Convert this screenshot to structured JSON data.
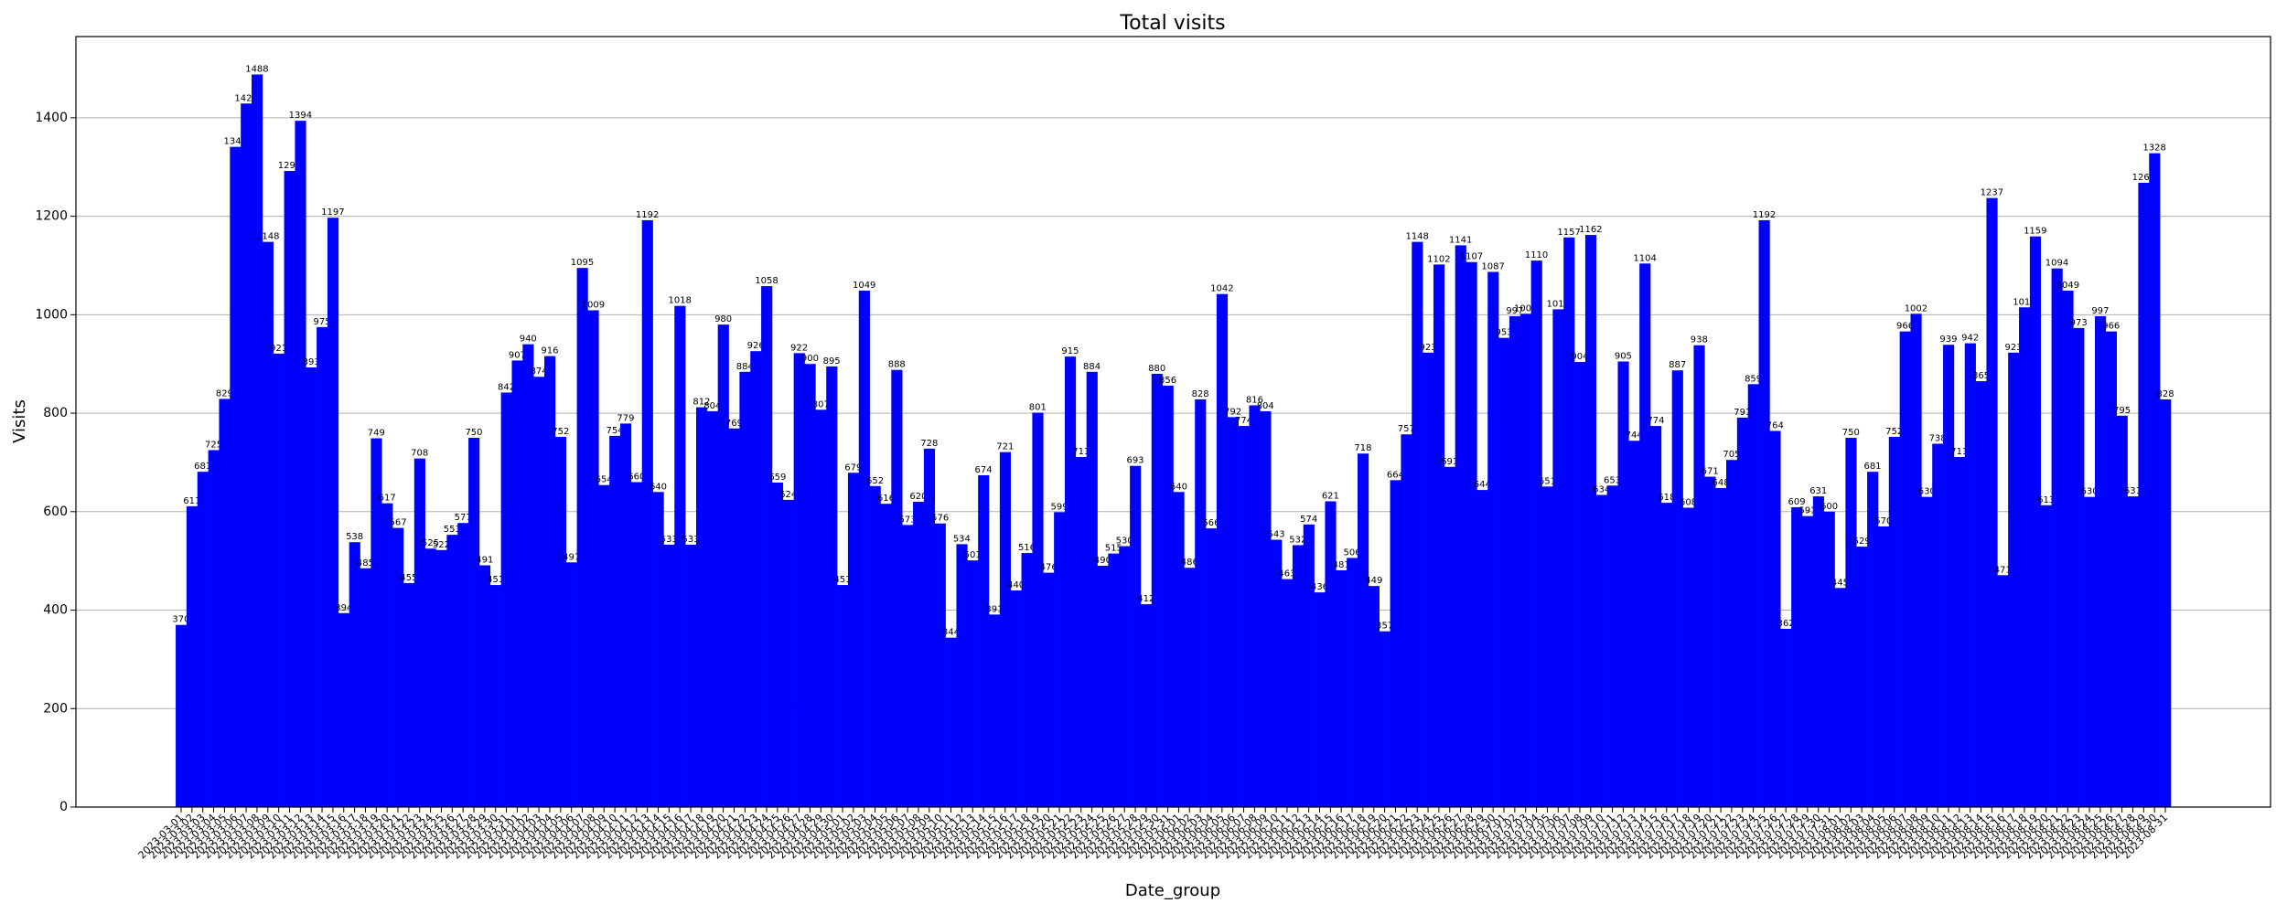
{
  "chart_data": {
    "type": "bar",
    "title": "Total visits",
    "x_label": "Date_group",
    "y_label": "Visits",
    "color": "#0000ff",
    "grid": true,
    "ylim": [
      0,
      1565
    ],
    "yticks": [
      0,
      200,
      400,
      600,
      800,
      1000,
      1200,
      1400
    ],
    "categories": [
      "2023-03-01",
      "2023-03-02",
      "2023-03-03",
      "2023-03-04",
      "2023-03-05",
      "2023-03-06",
      "2023-03-07",
      "2023-03-08",
      "2023-03-09",
      "2023-03-10",
      "2023-03-11",
      "2023-03-12",
      "2023-03-13",
      "2023-03-14",
      "2023-03-15",
      "2023-03-16",
      "2023-03-17",
      "2023-03-18",
      "2023-03-19",
      "2023-03-20",
      "2023-03-21",
      "2023-03-22",
      "2023-03-23",
      "2023-03-24",
      "2023-03-25",
      "2023-03-26",
      "2023-03-27",
      "2023-03-28",
      "2023-03-29",
      "2023-03-30",
      "2023-03-31",
      "2023-04-01",
      "2023-04-02",
      "2023-04-03",
      "2023-04-04",
      "2023-04-05",
      "2023-04-06",
      "2023-04-07",
      "2023-04-08",
      "2023-04-09",
      "2023-04-10",
      "2023-04-11",
      "2023-04-12",
      "2023-04-13",
      "2023-04-14",
      "2023-04-15",
      "2023-04-16",
      "2023-04-17",
      "2023-04-18",
      "2023-04-19",
      "2023-04-20",
      "2023-04-21",
      "2023-04-22",
      "2023-04-23",
      "2023-04-24",
      "2023-04-25",
      "2023-04-26",
      "2023-04-27",
      "2023-04-28",
      "2023-04-29",
      "2023-04-30",
      "2023-05-01",
      "2023-05-02",
      "2023-05-03",
      "2023-05-04",
      "2023-05-05",
      "2023-05-06",
      "2023-05-07",
      "2023-05-08",
      "2023-05-09",
      "2023-05-10",
      "2023-05-11",
      "2023-05-12",
      "2023-05-13",
      "2023-05-14",
      "2023-05-15",
      "2023-05-16",
      "2023-05-17",
      "2023-05-18",
      "2023-05-19",
      "2023-05-20",
      "2023-05-21",
      "2023-05-22",
      "2023-05-23",
      "2023-05-24",
      "2023-05-25",
      "2023-05-26",
      "2023-05-27",
      "2023-05-28",
      "2023-05-29",
      "2023-05-30",
      "2023-05-31",
      "2023-06-01",
      "2023-06-02",
      "2023-06-03",
      "2023-06-04",
      "2023-06-05",
      "2023-06-06",
      "2023-06-07",
      "2023-06-08",
      "2023-06-09",
      "2023-06-10",
      "2023-06-11",
      "2023-06-12",
      "2023-06-13",
      "2023-06-14",
      "2023-06-15",
      "2023-06-16",
      "2023-06-17",
      "2023-06-18",
      "2023-06-19",
      "2023-06-20",
      "2023-06-21",
      "2023-06-22",
      "2023-06-23",
      "2023-06-24",
      "2023-06-25",
      "2023-06-26",
      "2023-06-27",
      "2023-06-28",
      "2023-06-29",
      "2023-06-30",
      "2023-07-01",
      "2023-07-02",
      "2023-07-03",
      "2023-07-04",
      "2023-07-05",
      "2023-07-06",
      "2023-07-07",
      "2023-07-08",
      "2023-07-09",
      "2023-07-10",
      "2023-07-11",
      "2023-07-12",
      "2023-07-13",
      "2023-07-14",
      "2023-07-15",
      "2023-07-16",
      "2023-07-17",
      "2023-07-18",
      "2023-07-19",
      "2023-07-20",
      "2023-07-21",
      "2023-07-22",
      "2023-07-23",
      "2023-07-24",
      "2023-07-25",
      "2023-07-26",
      "2023-07-27",
      "2023-07-28",
      "2023-07-29",
      "2023-07-30",
      "2023-07-31",
      "2023-08-01",
      "2023-08-02",
      "2023-08-03",
      "2023-08-04",
      "2023-08-05",
      "2023-08-06",
      "2023-08-07",
      "2023-08-08",
      "2023-08-09",
      "2023-08-10",
      "2023-08-11",
      "2023-08-12",
      "2023-08-13",
      "2023-08-14",
      "2023-08-15",
      "2023-08-16",
      "2023-08-17",
      "2023-08-18",
      "2023-08-19",
      "2023-08-20",
      "2023-08-21",
      "2023-08-22",
      "2023-08-23",
      "2023-08-24",
      "2023-08-25",
      "2023-08-26",
      "2023-08-27",
      "2023-08-28",
      "2023-08-29",
      "2023-08-30",
      "2023-08-31"
    ],
    "values": [
      370,
      611,
      681,
      725,
      829,
      1341,
      1429,
      1488,
      1148,
      921,
      1292,
      1394,
      893,
      975,
      1197,
      394,
      538,
      485,
      749,
      617,
      567,
      455,
      708,
      525,
      522,
      553,
      577,
      750,
      491,
      451,
      842,
      907,
      940,
      874,
      916,
      752,
      497,
      1095,
      1009,
      654,
      754,
      779,
      660,
      1192,
      640,
      533,
      1018,
      533,
      812,
      804,
      980,
      769,
      884,
      926,
      1058,
      659,
      624,
      922,
      900,
      807,
      895,
      451,
      679,
      1049,
      652,
      616,
      888,
      573,
      620,
      728,
      576,
      344,
      534,
      501,
      674,
      391,
      721,
      440,
      516,
      801,
      476,
      599,
      915,
      711,
      884,
      490,
      515,
      530,
      693,
      412,
      880,
      856,
      640,
      486,
      828,
      566,
      1042,
      792,
      774,
      816,
      804,
      543,
      463,
      532,
      574,
      436,
      621,
      481,
      506,
      718,
      449,
      357,
      664,
      757,
      1148,
      923,
      1102,
      691,
      1141,
      1107,
      644,
      1087,
      953,
      997,
      1002,
      1110,
      651,
      1011,
      1157,
      904,
      1162,
      634,
      653,
      905,
      744,
      1104,
      774,
      618,
      887,
      608,
      938,
      671,
      648,
      705,
      791,
      859,
      1192,
      764,
      362,
      609,
      591,
      631,
      600,
      445,
      750,
      529,
      681,
      570,
      752,
      966,
      1002,
      630,
      738,
      939,
      711,
      942,
      865,
      1237,
      471,
      923,
      1015,
      1159,
      613,
      1094,
      1049,
      973,
      630,
      997,
      966,
      795,
      631,
      1268,
      1328,
      828
    ]
  }
}
